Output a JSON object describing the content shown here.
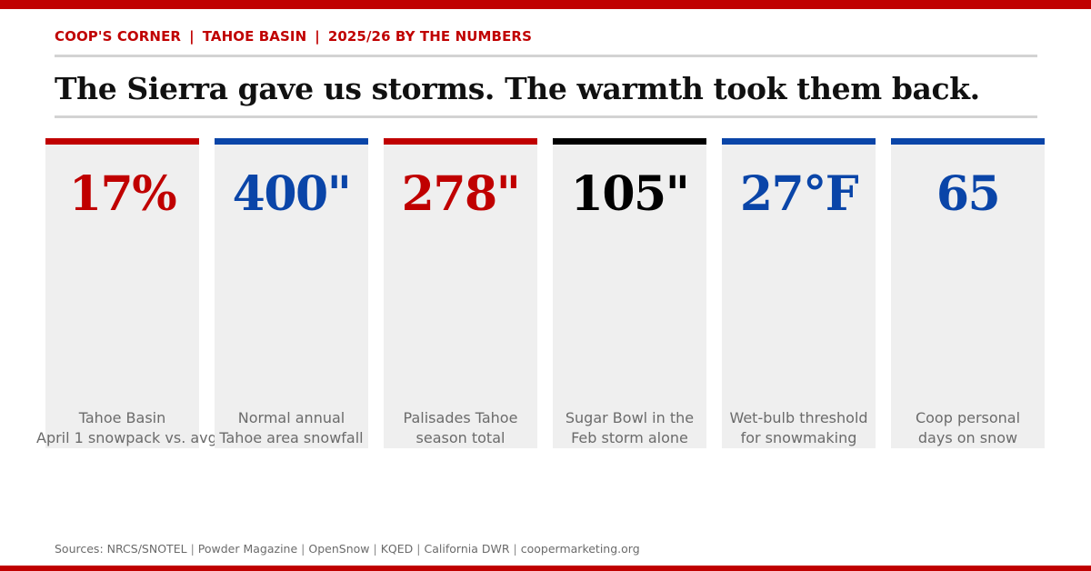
{
  "colors": {
    "red": "#c00000",
    "blue": "#0a45a8",
    "black": "#000000",
    "card_bg": "#efefef",
    "muted_text": "#6b6b6b",
    "rule": "#d3d3d3"
  },
  "kicker": {
    "parts": [
      "COOP'S CORNER",
      "TAHOE BASIN",
      "2025/26 BY THE NUMBERS"
    ],
    "separator": "|"
  },
  "headline": "The Sierra gave us storms. The warmth took them back.",
  "cards": [
    {
      "value": "17%",
      "accent": "red",
      "line1": "Tahoe Basin",
      "line2": "April 1 snowpack vs. avg"
    },
    {
      "value": "400\"",
      "accent": "blue",
      "line1": "Normal annual",
      "line2": "Tahoe area snowfall"
    },
    {
      "value": "278\"",
      "accent": "red",
      "line1": "Palisades Tahoe",
      "line2": "season total"
    },
    {
      "value": "105\"",
      "accent": "black",
      "line1": "Sugar Bowl in the",
      "line2": "Feb storm alone"
    },
    {
      "value": "27°F",
      "accent": "blue",
      "line1": "Wet-bulb threshold",
      "line2": "for snowmaking"
    },
    {
      "value": "65",
      "accent": "blue",
      "line1": "Coop personal",
      "line2": "days on snow"
    }
  ],
  "sources": {
    "label": "Sources:",
    "items": [
      "NRCS/SNOTEL",
      "Powder Magazine",
      "OpenSnow",
      "KQED",
      "California DWR",
      "coopermarketing.org"
    ],
    "separator": "|"
  }
}
